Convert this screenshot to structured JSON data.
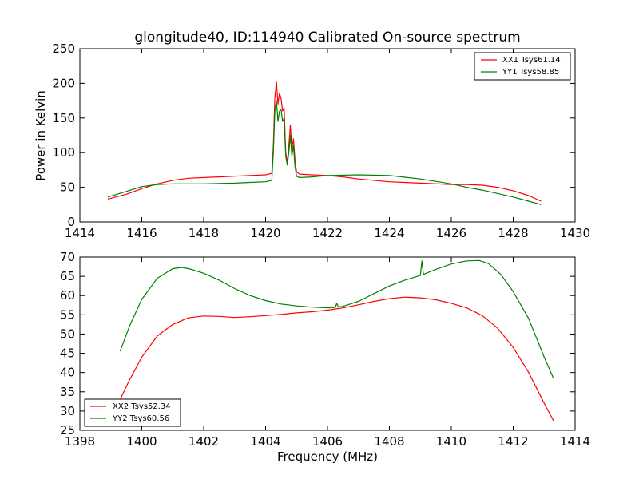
{
  "title": "glongitude40, ID:114940 Calibrated On-source spectrum",
  "colors": {
    "red": "#ff0000",
    "green": "#008000"
  },
  "chart_data": [
    {
      "type": "line",
      "panel": "top",
      "title": "glongitude40, ID:114940 Calibrated On-source spectrum",
      "xlabel": "",
      "ylabel": "Power in Kelvin",
      "xlim": [
        1414,
        1430
      ],
      "ylim": [
        0,
        250
      ],
      "xticks": [
        1414,
        1416,
        1418,
        1420,
        1422,
        1424,
        1426,
        1428,
        1430
      ],
      "yticks": [
        0,
        50,
        100,
        150,
        200,
        250
      ],
      "grid": false,
      "legend_position": "top-right",
      "series": [
        {
          "name": "XX1 Tsys61.14",
          "color": "#ff0000",
          "x": [
            1414.9,
            1415.5,
            1416.0,
            1416.5,
            1417.0,
            1417.5,
            1418.0,
            1418.5,
            1419.0,
            1419.5,
            1420.0,
            1420.2,
            1420.25,
            1420.3,
            1420.35,
            1420.4,
            1420.45,
            1420.5,
            1420.55,
            1420.6,
            1420.65,
            1420.7,
            1420.75,
            1420.8,
            1420.85,
            1420.9,
            1420.95,
            1421.0,
            1421.1,
            1421.5,
            1422.0,
            1422.5,
            1423.0,
            1424.0,
            1425.0,
            1426.0,
            1426.5,
            1427.0,
            1427.5,
            1428.0,
            1428.5,
            1428.9
          ],
          "values": [
            33,
            40,
            48,
            55,
            60,
            63,
            64,
            65,
            66,
            67,
            68,
            70,
            110,
            180,
            202,
            170,
            186,
            178,
            160,
            165,
            100,
            85,
            110,
            140,
            105,
            120,
            90,
            72,
            69,
            68,
            67,
            65,
            62,
            58,
            56,
            54,
            54,
            53,
            50,
            45,
            38,
            30
          ]
        },
        {
          "name": "YY1 Tsys58.85",
          "color": "#008000",
          "x": [
            1414.9,
            1415.5,
            1416.0,
            1416.5,
            1417.0,
            1418.0,
            1419.0,
            1419.5,
            1420.0,
            1420.2,
            1420.25,
            1420.3,
            1420.35,
            1420.4,
            1420.45,
            1420.5,
            1420.55,
            1420.6,
            1420.65,
            1420.7,
            1420.75,
            1420.8,
            1420.85,
            1420.9,
            1420.95,
            1421.0,
            1421.1,
            1421.5,
            1422.0,
            1423.0,
            1424.0,
            1425.0,
            1426.0,
            1426.5,
            1427.0,
            1427.5,
            1428.0,
            1428.5,
            1428.9
          ],
          "values": [
            36,
            44,
            51,
            54,
            55,
            55,
            56,
            57,
            58,
            60,
            100,
            160,
            175,
            145,
            160,
            162,
            145,
            150,
            95,
            82,
            100,
            125,
            95,
            110,
            80,
            66,
            64,
            65,
            67,
            68,
            67,
            62,
            55,
            50,
            46,
            41,
            36,
            30,
            25
          ]
        }
      ]
    },
    {
      "type": "line",
      "panel": "bottom",
      "title": "",
      "xlabel": "Frequency (MHz)",
      "ylabel": "",
      "xlim": [
        1398,
        1414
      ],
      "ylim": [
        25,
        70
      ],
      "xticks": [
        1398,
        1400,
        1402,
        1404,
        1406,
        1408,
        1410,
        1412,
        1414
      ],
      "yticks": [
        25,
        30,
        35,
        40,
        45,
        50,
        55,
        60,
        65,
        70
      ],
      "grid": false,
      "legend_position": "bottom-left",
      "series": [
        {
          "name": "XX2 Tsys52.34",
          "color": "#ff0000",
          "x": [
            1399.3,
            1399.6,
            1400.0,
            1400.5,
            1401.0,
            1401.5,
            1402.0,
            1402.5,
            1403.0,
            1403.5,
            1404.0,
            1404.5,
            1405.0,
            1405.5,
            1406.0,
            1406.5,
            1407.0,
            1407.5,
            1408.0,
            1408.5,
            1409.0,
            1409.5,
            1410.0,
            1410.5,
            1411.0,
            1411.5,
            1412.0,
            1412.5,
            1413.0,
            1413.3
          ],
          "values": [
            33,
            38,
            44,
            49.5,
            52.5,
            54.2,
            54.7,
            54.6,
            54.3,
            54.5,
            54.8,
            55.1,
            55.5,
            55.8,
            56.2,
            56.8,
            57.6,
            58.5,
            59.2,
            59.6,
            59.4,
            58.9,
            58.0,
            56.8,
            54.8,
            51.5,
            46.5,
            40,
            32,
            27.5
          ]
        },
        {
          "name": "YY2 Tsys60.56",
          "color": "#008000",
          "x": [
            1399.3,
            1399.6,
            1400.0,
            1400.5,
            1401.0,
            1401.3,
            1401.6,
            1402.0,
            1402.5,
            1403.0,
            1403.5,
            1404.0,
            1404.5,
            1405.0,
            1405.5,
            1406.0,
            1406.25,
            1406.3,
            1406.35,
            1406.5,
            1407.0,
            1407.5,
            1408.0,
            1408.5,
            1409.0,
            1409.05,
            1409.1,
            1409.5,
            1410.0,
            1410.5,
            1410.9,
            1411.2,
            1411.6,
            1412.0,
            1412.5,
            1413.0,
            1413.3
          ],
          "values": [
            45.5,
            52,
            59,
            64.5,
            67,
            67.3,
            66.8,
            65.8,
            64,
            61.8,
            60,
            58.7,
            57.8,
            57.3,
            57,
            56.8,
            56.9,
            58,
            57,
            57.2,
            58.5,
            60.5,
            62.5,
            64,
            65.2,
            69,
            65.5,
            66.8,
            68.2,
            69,
            69.1,
            68.3,
            65.5,
            61,
            54,
            44,
            38.5
          ]
        }
      ]
    }
  ]
}
